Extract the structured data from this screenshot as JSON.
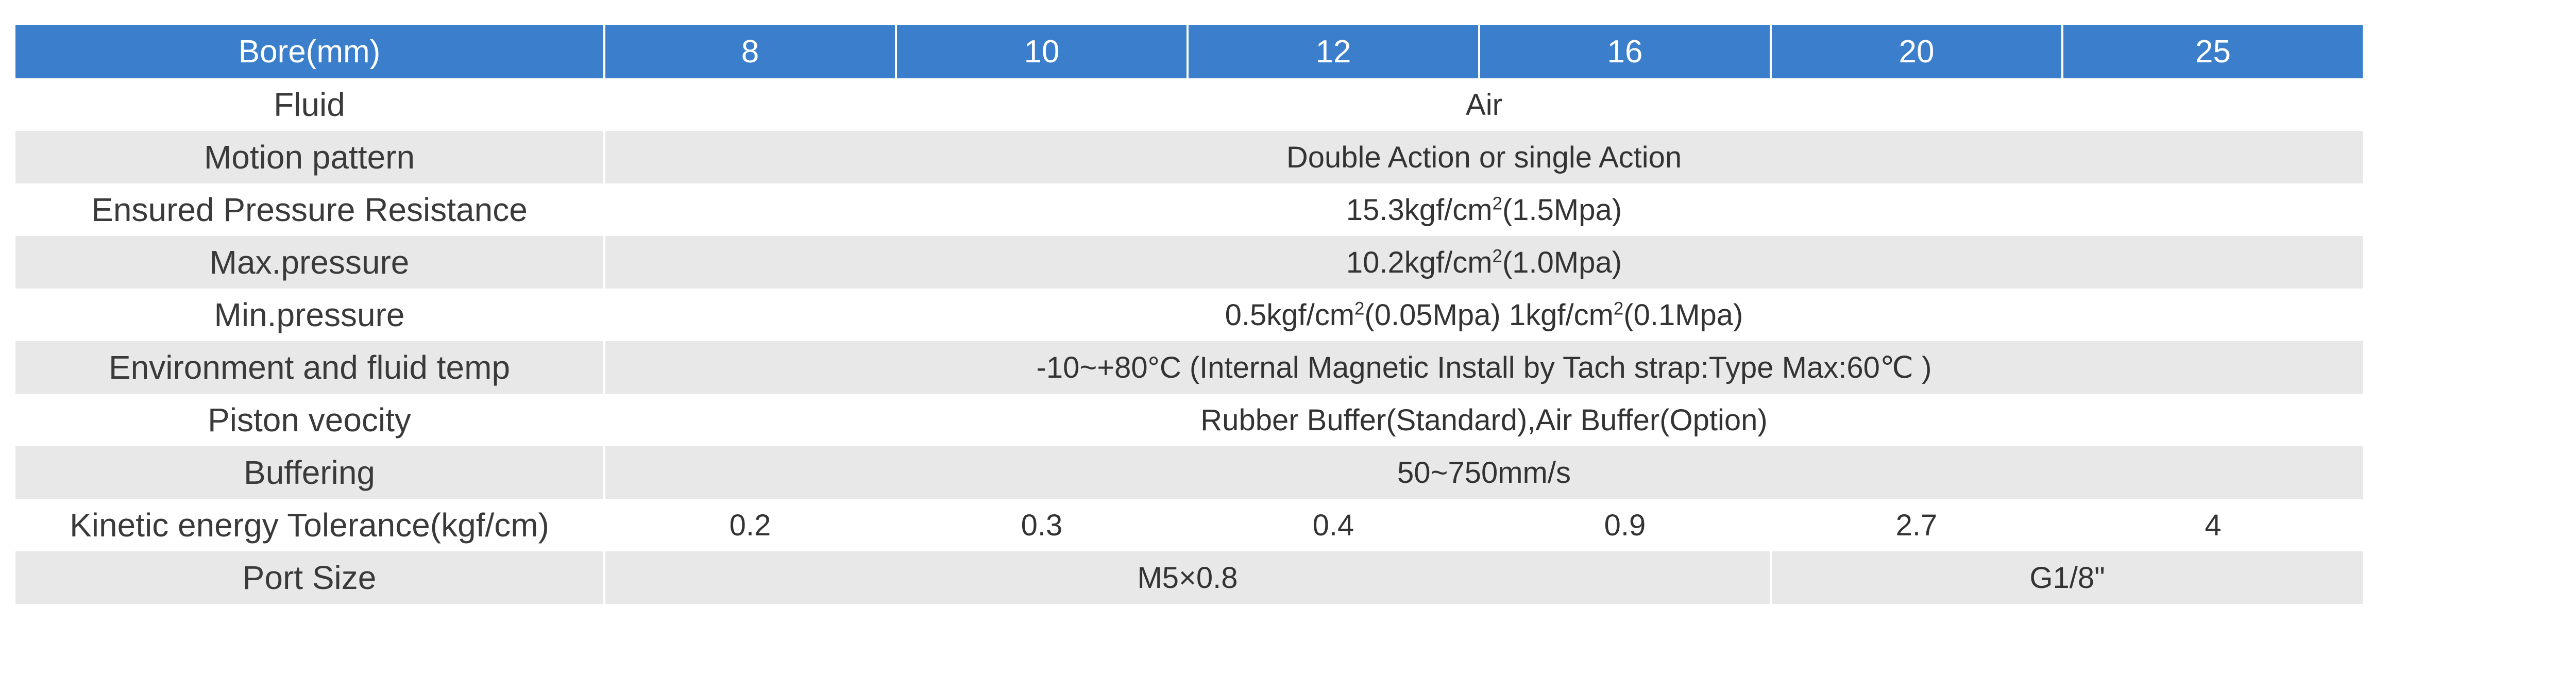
{
  "header": {
    "label": "Bore(mm)",
    "bores": [
      "8",
      "10",
      "12",
      "16",
      "20",
      "25"
    ]
  },
  "rows": {
    "fluid": {
      "label": "Fluid",
      "value": "Air"
    },
    "motion": {
      "label": "Motion pattern",
      "value": "Double Action or single Action"
    },
    "ensured": {
      "label": "Ensured Pressure Resistance",
      "value_a": "15.3kgf/cm",
      "sup": "2",
      "value_b": "(1.5Mpa)"
    },
    "maxp": {
      "label": "Max.pressure",
      "value_a": "10.2kgf/cm",
      "sup": "2",
      "value_b": "(1.0Mpa)"
    },
    "minp": {
      "label": "Min.pressure",
      "value_a": "0.5kgf/cm",
      "sup1": "2",
      "value_b": "(0.05Mpa) 1kgf/cm",
      "sup2": "2",
      "value_c": "(0.1Mpa)"
    },
    "env": {
      "label": "Environment and fluid temp",
      "value": "-10~+80°C (Internal Magnetic Install by Tach strap:Type Max:60℃ )"
    },
    "piston": {
      "label": "Piston veocity",
      "value": "Rubber Buffer(Standard),Air Buffer(Option)"
    },
    "buffering": {
      "label": "Buffering",
      "value": "50~750mm/s"
    },
    "kinetic": {
      "label": "Kinetic energy Tolerance(kgf/cm)",
      "values": [
        "0.2",
        "0.3",
        "0.4",
        "0.9",
        "2.7",
        "4"
      ]
    },
    "port": {
      "label": "Port Size",
      "value_small": "M5×0.8",
      "value_large": "G1/8\""
    }
  }
}
